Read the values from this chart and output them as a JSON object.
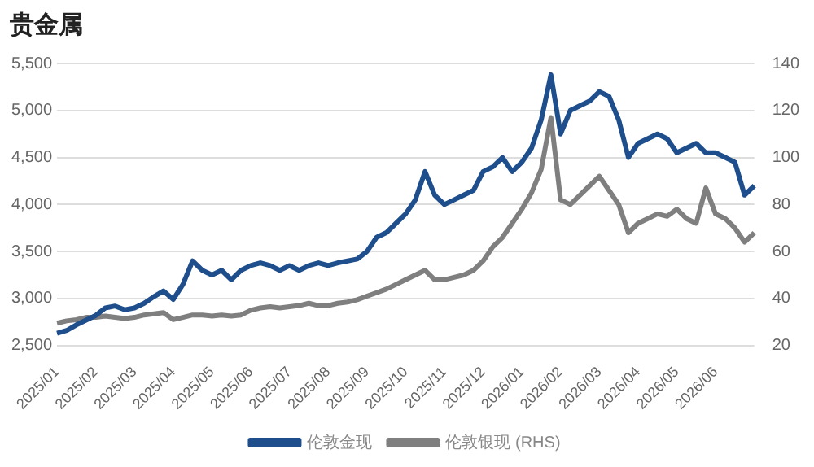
{
  "chart_data": {
    "type": "line",
    "title": "贵金属",
    "categories": [
      "2025/01",
      null,
      null,
      null,
      "2025/02",
      null,
      null,
      null,
      "2025/03",
      null,
      null,
      null,
      "2025/04",
      null,
      null,
      null,
      "2025/05",
      null,
      null,
      null,
      "2025/06",
      null,
      null,
      null,
      "2025/07",
      null,
      null,
      null,
      "2025/08",
      null,
      null,
      null,
      "2025/09",
      null,
      null,
      null,
      "2025/10",
      null,
      null,
      null,
      "2025/11",
      null,
      null,
      null,
      "2025/12",
      null,
      null,
      null,
      "2026/01",
      null,
      null,
      null,
      "2026/02",
      null,
      null,
      null,
      "2026/03",
      null,
      null,
      null,
      "2026/04",
      null,
      null,
      null,
      "2026/05",
      null,
      null,
      null,
      "2026/06",
      null,
      null,
      null,
      null
    ],
    "series": [
      {
        "name": "伦敦金现",
        "color": "#1f4e8c",
        "values": [
          2630,
          2660,
          2720,
          2770,
          2820,
          2900,
          2920,
          2880,
          2900,
          2950,
          3020,
          3080,
          2990,
          3150,
          3400,
          3300,
          3250,
          3300,
          3200,
          3300,
          3350,
          3380,
          3350,
          3300,
          3350,
          3300,
          3350,
          3380,
          3350,
          3380,
          3400,
          3420,
          3500,
          3650,
          3700,
          3800,
          3900,
          4050,
          4350,
          4100,
          4000,
          4050,
          4100,
          4150,
          4350,
          4400,
          4500,
          4350,
          4450,
          4600,
          4900,
          5380,
          4750,
          5000,
          5050,
          5100,
          5200,
          5150,
          4900,
          4500,
          4650,
          4700,
          4750,
          4700,
          4550,
          4600,
          4650,
          4550,
          4550,
          4500,
          4450,
          4100,
          4200
        ]
      },
      {
        "name": "伦敦银现 (RHS)",
        "color": "#7f7f7f",
        "axis": "y2",
        "values": [
          29.5,
          30.5,
          31,
          32,
          32,
          32.5,
          32,
          31.5,
          32,
          33,
          33.5,
          34,
          31,
          32,
          33,
          33,
          32.5,
          33,
          32.5,
          33,
          35,
          36,
          36.5,
          36,
          36.5,
          37,
          38,
          37,
          37,
          38,
          38.5,
          39.5,
          41,
          42.5,
          44,
          46,
          48,
          50,
          52,
          48,
          48,
          49,
          50,
          52,
          56,
          62,
          66,
          72,
          78,
          85,
          95,
          117,
          82,
          80,
          84,
          88,
          92,
          86,
          80,
          68,
          72,
          74,
          76,
          75,
          78,
          74,
          72,
          87,
          76,
          74,
          70,
          64,
          68
        ]
      }
    ],
    "ylim": [
      2500,
      5500
    ],
    "yticks": [
      {
        "value": 2500,
        "label": "2,500"
      },
      {
        "value": 3000,
        "label": "3,000"
      },
      {
        "value": 3500,
        "label": "3,500"
      },
      {
        "value": 4000,
        "label": "4,000"
      },
      {
        "value": 4500,
        "label": "4,500"
      },
      {
        "value": 5000,
        "label": "5,000"
      },
      {
        "value": 5500,
        "label": "5,500"
      }
    ],
    "y2lim": [
      20,
      140
    ],
    "y2ticks": [
      20,
      40,
      60,
      80,
      100,
      120,
      140
    ],
    "grid": "y",
    "legend": "bottom",
    "marker": "none",
    "line_style": "solid"
  }
}
